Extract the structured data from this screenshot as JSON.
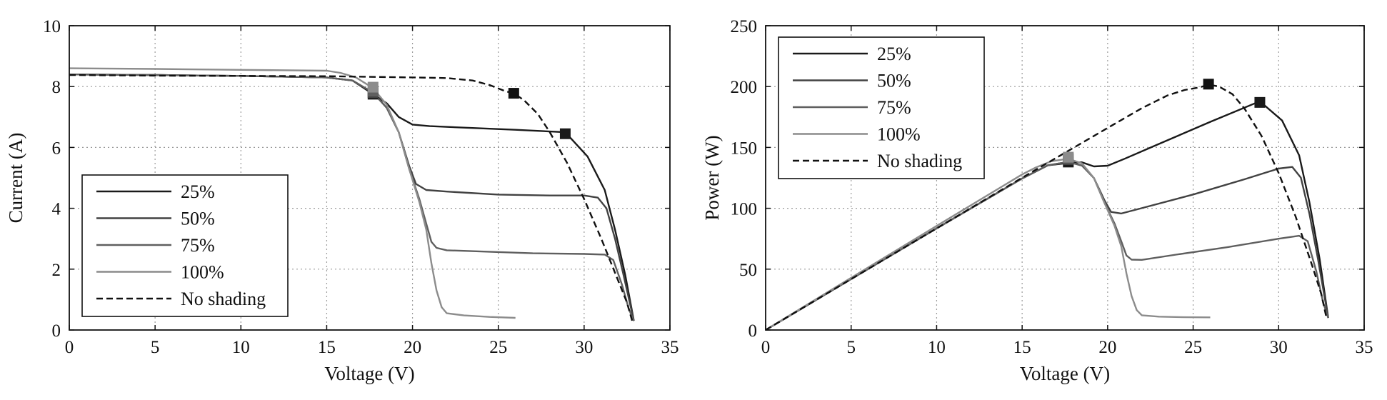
{
  "colors": {
    "s25": "#1a1a1a",
    "s50": "#424242",
    "s75": "#5f5f5f",
    "s100": "#8c8c8c",
    "noshade": "#111111"
  },
  "chart_data": [
    {
      "type": "line",
      "xlabel": "Voltage (V)",
      "ylabel": "Current (A)",
      "xlim": [
        0,
        35
      ],
      "ylim": [
        0,
        10
      ],
      "xticks": [
        0,
        5,
        10,
        15,
        20,
        25,
        30,
        35
      ],
      "yticks": [
        0,
        2,
        4,
        6,
        8,
        10
      ],
      "grid": true,
      "legend_position": "bottom-left",
      "series": [
        {
          "name": "25%",
          "style": "solid",
          "color_key": "s25",
          "x": [
            0,
            5,
            10,
            15,
            16.5,
            17.7,
            18.5,
            19.2,
            20,
            21,
            23,
            26,
            28.9,
            30.2,
            31.2,
            31.8,
            32.4,
            32.9
          ],
          "y": [
            8.4,
            8.38,
            8.35,
            8.3,
            8.2,
            7.75,
            7.45,
            7.0,
            6.75,
            6.7,
            6.65,
            6.58,
            6.5,
            5.7,
            4.6,
            3.3,
            1.8,
            0.3
          ],
          "markers": [
            [
              17.7,
              7.75
            ],
            [
              28.9,
              6.45
            ]
          ]
        },
        {
          "name": "50%",
          "style": "solid",
          "color_key": "s50",
          "x": [
            0,
            5,
            10,
            15,
            16.5,
            17.7,
            18.5,
            19.2,
            19.8,
            20.2,
            20.8,
            22,
            25,
            28,
            30,
            30.8,
            31.3,
            31.8,
            32.3,
            32.9
          ],
          "y": [
            8.4,
            8.38,
            8.35,
            8.3,
            8.2,
            7.8,
            7.3,
            6.5,
            5.4,
            4.8,
            4.6,
            4.55,
            4.45,
            4.42,
            4.42,
            4.35,
            4.0,
            3.0,
            1.8,
            0.3
          ],
          "markers": [
            [
              17.7,
              7.8
            ]
          ]
        },
        {
          "name": "75%",
          "style": "solid",
          "color_key": "s75",
          "x": [
            0,
            5,
            10,
            15,
            16.5,
            17.7,
            18.5,
            19.2,
            19.8,
            20.4,
            20.8,
            21.1,
            21.4,
            22,
            24,
            27,
            30,
            31.2,
            31.7,
            32.2,
            32.6,
            32.9
          ],
          "y": [
            8.4,
            8.38,
            8.35,
            8.3,
            8.2,
            7.8,
            7.3,
            6.5,
            5.3,
            4.3,
            3.5,
            2.9,
            2.7,
            2.62,
            2.58,
            2.52,
            2.5,
            2.48,
            2.3,
            1.5,
            0.7,
            0.3
          ],
          "markers": [
            [
              17.7,
              7.85
            ]
          ]
        },
        {
          "name": "100%",
          "style": "solid",
          "color_key": "s100",
          "x": [
            0,
            5,
            10,
            15,
            15.8,
            16.7,
            17.7,
            18.5,
            19.2,
            19.8,
            20.4,
            20.8,
            21.1,
            21.4,
            21.7,
            22,
            23,
            24.5,
            26
          ],
          "y": [
            8.6,
            8.58,
            8.55,
            8.52,
            8.45,
            8.3,
            7.95,
            7.4,
            6.5,
            5.3,
            4.2,
            3.3,
            2.2,
            1.3,
            0.75,
            0.55,
            0.48,
            0.43,
            0.4
          ],
          "markers": [
            [
              17.7,
              7.98
            ]
          ]
        },
        {
          "name": "No shading",
          "style": "dashed",
          "color_key": "noshade",
          "x": [
            0,
            5,
            10,
            15,
            20,
            22,
            23.5,
            24.5,
            25.4,
            25.9,
            26.5,
            27.3,
            28,
            29,
            30,
            31,
            32,
            32.5,
            32.8
          ],
          "y": [
            8.38,
            8.36,
            8.35,
            8.34,
            8.3,
            8.28,
            8.2,
            8.05,
            7.85,
            7.78,
            7.55,
            7.1,
            6.5,
            5.5,
            4.3,
            3.0,
            1.6,
            0.9,
            0.3
          ],
          "markers": [
            [
              25.9,
              7.78
            ]
          ]
        }
      ]
    },
    {
      "type": "line",
      "xlabel": "Voltage (V)",
      "ylabel": "Power (W)",
      "xlim": [
        0,
        35
      ],
      "ylim": [
        0,
        250
      ],
      "xticks": [
        0,
        5,
        10,
        15,
        20,
        25,
        30,
        35
      ],
      "yticks": [
        0,
        50,
        100,
        150,
        200,
        250
      ],
      "grid": true,
      "legend_position": "top-left",
      "series": [
        {
          "name": "25%",
          "style": "solid",
          "color_key": "s25",
          "x": [
            0,
            5,
            10,
            15,
            16.5,
            17.7,
            18.5,
            19.2,
            20,
            21,
            23,
            26,
            28.9,
            30.2,
            31.2,
            31.8,
            32.4,
            32.9
          ],
          "y": [
            0,
            41.9,
            83.5,
            124.5,
            135.3,
            137.2,
            137.8,
            134.4,
            135,
            140.7,
            152.9,
            171,
            187.9,
            172.1,
            143.5,
            104.9,
            58.3,
            9.9
          ],
          "markers": [
            [
              17.7,
              138
            ],
            [
              28.9,
              187
            ]
          ]
        },
        {
          "name": "50%",
          "style": "solid",
          "color_key": "s50",
          "x": [
            0,
            5,
            10,
            15,
            16.5,
            17.7,
            18.5,
            19.2,
            19.8,
            20.2,
            20.8,
            22,
            25,
            28,
            30,
            30.8,
            31.3,
            31.8,
            32.3,
            32.9
          ],
          "y": [
            0,
            41.9,
            83.5,
            124.5,
            135.3,
            138.1,
            135.1,
            124.8,
            106.9,
            97,
            95.7,
            100.1,
            111.3,
            123.8,
            132.6,
            134,
            125.2,
            95.4,
            58.1,
            9.9
          ],
          "markers": [
            [
              17.7,
              140
            ]
          ]
        },
        {
          "name": "75%",
          "style": "solid",
          "color_key": "s75",
          "x": [
            0,
            5,
            10,
            15,
            16.5,
            17.7,
            18.5,
            19.2,
            19.8,
            20.4,
            20.8,
            21.1,
            21.4,
            22,
            24,
            27,
            30,
            31.2,
            31.7,
            32.2,
            32.6,
            32.9
          ],
          "y": [
            0,
            41.9,
            83.5,
            124.5,
            135.3,
            138.1,
            135.1,
            124.8,
            104.9,
            87.7,
            72.8,
            61.2,
            57.8,
            57.6,
            61.9,
            68,
            75,
            77.4,
            72.9,
            48.3,
            22.8,
            9.9
          ],
          "markers": [
            [
              17.7,
              141
            ]
          ]
        },
        {
          "name": "100%",
          "style": "solid",
          "color_key": "s100",
          "x": [
            0,
            5,
            10,
            15,
            15.8,
            16.7,
            17.7,
            18.5,
            19.2,
            19.8,
            20.4,
            20.8,
            21.1,
            21.4,
            21.7,
            22,
            23,
            24.5,
            26
          ],
          "y": [
            0,
            42.9,
            85.5,
            127.8,
            133.5,
            138.6,
            140.7,
            136.9,
            124.8,
            104.9,
            85.7,
            68.6,
            46.4,
            27.8,
            16.3,
            12.1,
            11,
            10.5,
            10.4
          ],
          "markers": [
            [
              17.7,
              142
            ]
          ]
        },
        {
          "name": "No shading",
          "style": "dashed",
          "color_key": "noshade",
          "x": [
            0,
            5,
            10,
            15,
            20,
            22,
            23.5,
            24.5,
            25.4,
            25.9,
            26.5,
            27.3,
            28,
            29,
            30,
            31,
            32,
            32.5,
            32.8
          ],
          "y": [
            0,
            41.8,
            83.5,
            125.1,
            166,
            182.2,
            192.7,
            197.2,
            199.4,
            201.5,
            200.1,
            193.8,
            182,
            159.5,
            129,
            93,
            51.2,
            29.3,
            9.8
          ],
          "markers": [
            [
              25.9,
              202
            ]
          ]
        }
      ]
    }
  ]
}
